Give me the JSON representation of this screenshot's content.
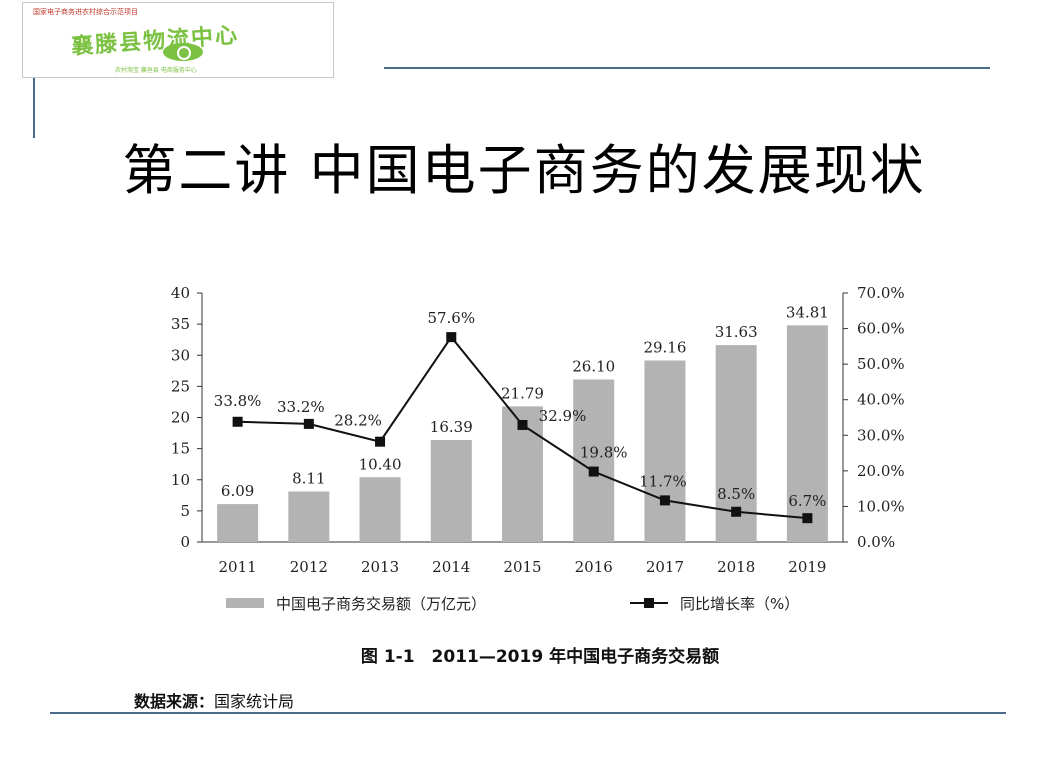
{
  "logo": {
    "name": "襄滕县物流中心",
    "top_text": "国家电子商务进农村综合示范项目",
    "sub_text": "农村淘宝 襄垣县 电商服务中心"
  },
  "slide": {
    "title": "第二讲 中国电子商务的发展现状"
  },
  "figure": {
    "caption": "图 1-1　2011—2019 年中国电子商务交易额",
    "source_label": "数据来源：",
    "source_value": "国家统计局"
  },
  "colors": {
    "bar": "#b3b3b3",
    "line": "#111111",
    "rule": "#4a6b8a",
    "logo_green": "#7cc242"
  },
  "chart_data": {
    "type": "bar",
    "categories": [
      "2011",
      "2012",
      "2013",
      "2014",
      "2015",
      "2016",
      "2017",
      "2018",
      "2019"
    ],
    "series": [
      {
        "name": "中国电子商务交易额（万亿元）",
        "type": "bar",
        "axis": "left",
        "values": [
          6.09,
          8.11,
          10.4,
          16.39,
          21.79,
          26.1,
          29.16,
          31.63,
          34.81
        ],
        "labels": [
          "6.09",
          "8.11",
          "10.40",
          "16.39",
          "21.79",
          "26.10",
          "29.16",
          "31.63",
          "34.81"
        ]
      },
      {
        "name": "同比增长率（%）",
        "type": "line",
        "axis": "right",
        "values": [
          33.8,
          33.2,
          28.2,
          57.6,
          32.9,
          19.8,
          11.7,
          8.5,
          6.7
        ],
        "labels": [
          "33.8%",
          "33.2%",
          "28.2%",
          "57.6%",
          "32.9%",
          "19.8%",
          "11.7%",
          "8.5%",
          "6.7%"
        ]
      }
    ],
    "y_left": {
      "lim": [
        0,
        40
      ],
      "ticks": [
        "0",
        "5",
        "10",
        "15",
        "20",
        "25",
        "30",
        "35",
        "40"
      ]
    },
    "y_right": {
      "lim": [
        0,
        70
      ],
      "ticks": [
        "0.0%",
        "10.0%",
        "20.0%",
        "30.0%",
        "40.0%",
        "50.0%",
        "60.0%",
        "70.0%"
      ]
    },
    "legend_position": "bottom",
    "grid": false
  }
}
